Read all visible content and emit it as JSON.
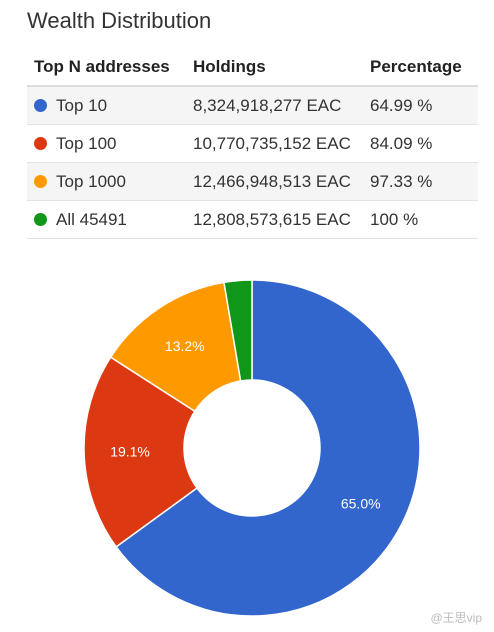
{
  "header": {
    "title": "Wealth Distribution"
  },
  "table": {
    "columns": [
      "Top N addresses",
      "Holdings",
      "Percentage"
    ],
    "rows": [
      {
        "label": "Top 10",
        "holdings": "8,324,918,277 EAC",
        "percentage": "64.99 %",
        "color": "#3366cc"
      },
      {
        "label": "Top 100",
        "holdings": "10,770,735,152 EAC",
        "percentage": "84.09 %",
        "color": "#dc3912"
      },
      {
        "label": "Top 1000",
        "holdings": "12,466,948,513 EAC",
        "percentage": "97.33 %",
        "color": "#ff9900"
      },
      {
        "label": "All 45491",
        "holdings": "12,808,573,615 EAC",
        "percentage": "100 %",
        "color": "#109618"
      }
    ]
  },
  "chart_data": {
    "type": "pie",
    "donut": true,
    "slices": [
      {
        "name": "Top 10",
        "value": 64.99,
        "label": "65.0%",
        "color": "#3366cc"
      },
      {
        "name": "Top 100",
        "value": 19.1,
        "label": "19.1%",
        "color": "#dc3912"
      },
      {
        "name": "Top 1000",
        "value": 13.24,
        "label": "13.2%",
        "color": "#ff9900"
      },
      {
        "name": "All 45491",
        "value": 2.67,
        "label": "",
        "color": "#109618"
      }
    ]
  },
  "watermark": "@王思vip"
}
